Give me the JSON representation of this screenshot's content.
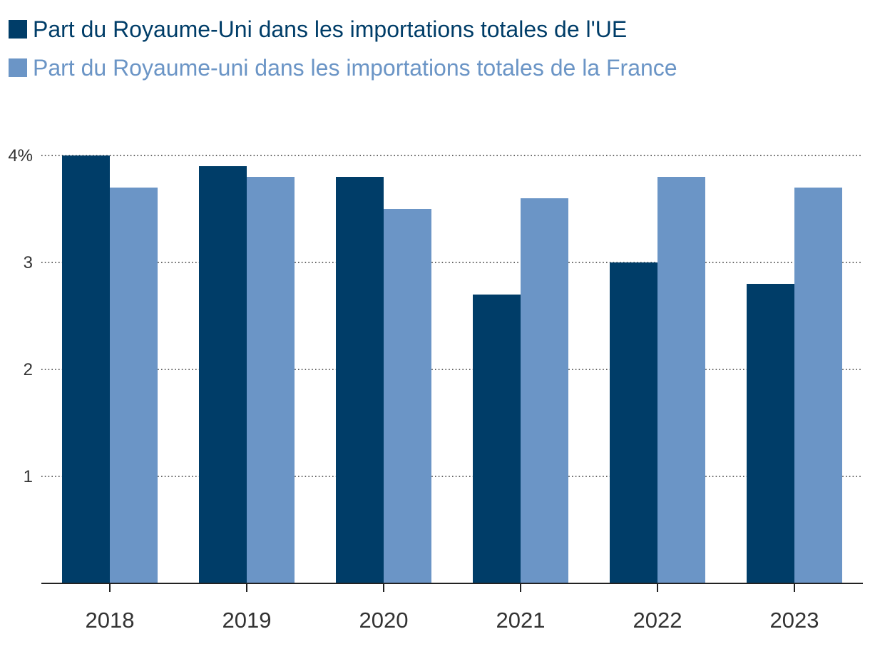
{
  "chart_data": {
    "type": "bar",
    "categories": [
      "2018",
      "2019",
      "2020",
      "2021",
      "2022",
      "2023"
    ],
    "series": [
      {
        "name": "Part du Royaume-Uni dans les importations totales de l'UE",
        "color": "#003d68",
        "values": [
          4.0,
          3.9,
          3.8,
          2.7,
          3.0,
          2.8
        ]
      },
      {
        "name": "Part du Royaume-uni dans les importations totales de la France",
        "color": "#6b95c6",
        "values": [
          3.7,
          3.8,
          3.5,
          3.6,
          3.8,
          3.7
        ]
      }
    ],
    "ylim": [
      0,
      4
    ],
    "y_ticks": [
      {
        "value": 1,
        "label": "1"
      },
      {
        "value": 2,
        "label": "2"
      },
      {
        "value": 3,
        "label": "3"
      },
      {
        "value": 4,
        "label": "4%"
      }
    ],
    "grid": true,
    "legend_position": "top-left",
    "title": "",
    "xlabel": "",
    "ylabel": ""
  }
}
